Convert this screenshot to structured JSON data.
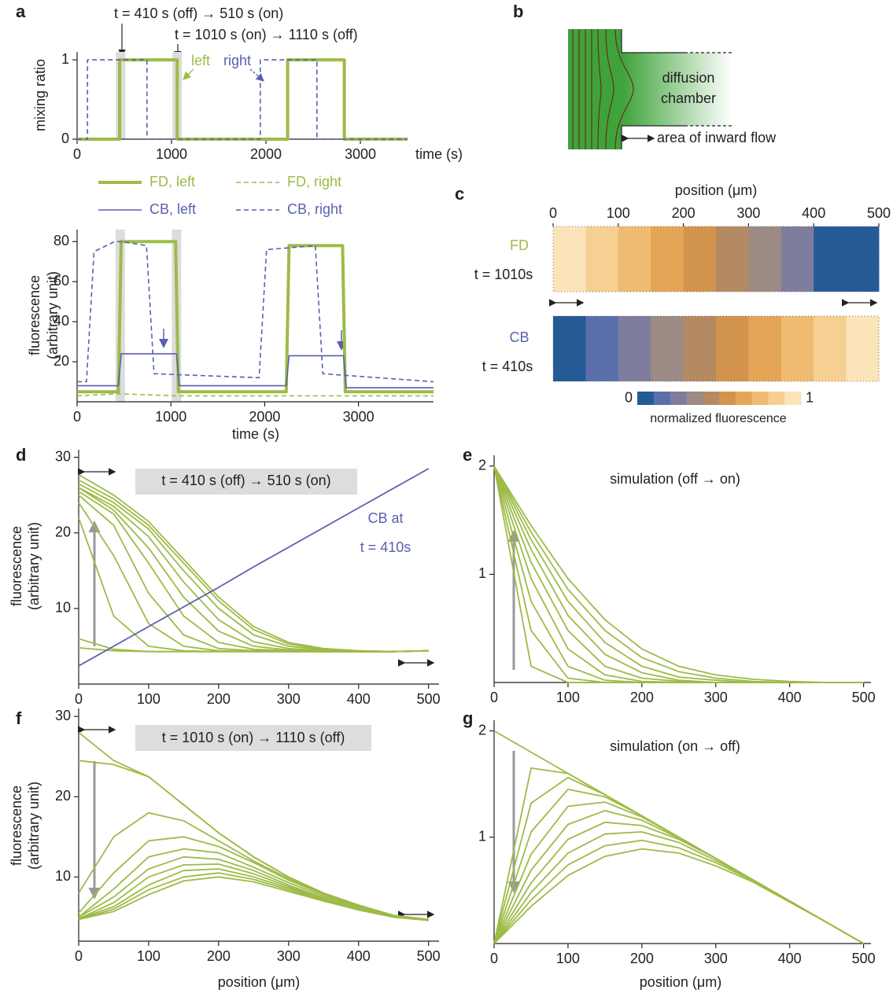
{
  "panel_labels": [
    "a",
    "b",
    "c",
    "d",
    "e",
    "f",
    "g"
  ],
  "diagram": {
    "chamber_label": [
      "diffusion",
      "chamber"
    ],
    "flow_label": "area of inward flow"
  },
  "chart_data": [
    {
      "type": "line",
      "ylabel": "mixing ratio",
      "xlabel": "time (s)",
      "xlim": [
        0,
        3500
      ],
      "ylim": [
        0,
        1.1
      ],
      "xticks": [
        0,
        1000,
        2000,
        3000
      ],
      "yticks": [
        0,
        1
      ],
      "spans": [
        [
          410,
          510
        ],
        [
          1010,
          1110
        ]
      ],
      "annotations": [
        "t = 410 s (off) → 510 s (on)",
        "t = 1010 s (on) → 1110 s (off)",
        "left",
        "right"
      ],
      "series": [
        {
          "name": "FD, left",
          "color": "#9dbb47",
          "style": "solid",
          "linewidth": 4,
          "x": [
            0,
            450,
            450,
            1060,
            1060,
            2230,
            2230,
            2830,
            2830,
            3500
          ],
          "values": [
            0,
            0,
            1,
            1,
            0,
            0,
            1,
            1,
            0,
            0
          ]
        },
        {
          "name": "CB, right",
          "color": "#5a5fb0",
          "style": "dashed",
          "linewidth": 1.6,
          "x": [
            0,
            110,
            110,
            740,
            740,
            1940,
            1940,
            2540,
            2540,
            3500
          ],
          "values": [
            0,
            0,
            1,
            1,
            0,
            0,
            1,
            1,
            0,
            0
          ]
        }
      ]
    },
    {
      "type": "line",
      "ylabel": [
        "fluorescence",
        "(arbitrary unit)"
      ],
      "xlabel": "time (s)",
      "xlim": [
        0,
        3800
      ],
      "ylim": [
        0,
        86
      ],
      "xticks": [
        0,
        1000,
        2000,
        3000
      ],
      "yticks": [
        20,
        40,
        60,
        80
      ],
      "legend": true,
      "spans": [
        [
          410,
          510
        ],
        [
          1010,
          1110
        ]
      ],
      "series": [
        {
          "name": "FD, left",
          "color": "#9dbb47",
          "style": "solid",
          "linewidth": 4,
          "x": [
            0,
            440,
            470,
            1050,
            1080,
            2230,
            2260,
            2830,
            2860,
            3800
          ],
          "values": [
            5,
            5,
            80,
            80,
            5,
            5,
            78,
            78,
            5,
            5
          ]
        },
        {
          "name": "FD, right",
          "color": "#9dbb47",
          "style": "dashed",
          "linewidth": 1.6,
          "x": [
            0,
            450,
            1060,
            3800
          ],
          "values": [
            3,
            4,
            3,
            3
          ]
        },
        {
          "name": "CB, left",
          "color": "#5a5fb0",
          "style": "solid",
          "linewidth": 1.6,
          "x": [
            0,
            440,
            470,
            1060,
            1090,
            2230,
            2260,
            2840,
            2870,
            3800
          ],
          "values": [
            8,
            8,
            24,
            24,
            8,
            8,
            23,
            23,
            7,
            7
          ]
        },
        {
          "name": "CB, right",
          "color": "#5a5fb0",
          "style": "dashed",
          "linewidth": 1.6,
          "x": [
            0,
            100,
            180,
            400,
            480,
            740,
            820,
            1940,
            2020,
            2540,
            2620,
            3800
          ],
          "values": [
            10,
            10,
            75,
            80,
            80,
            78,
            14,
            12,
            76,
            78,
            14,
            10
          ]
        }
      ]
    },
    {
      "type": "heatmap",
      "xlabel": "position (μm)",
      "xlim": [
        0,
        500
      ],
      "xticks": [
        0,
        100,
        200,
        300,
        400,
        500
      ],
      "bins": [
        0,
        50,
        100,
        150,
        200,
        250,
        300,
        350,
        400,
        450,
        500
      ],
      "zlim": [
        0,
        1
      ],
      "zticks": [
        0,
        1
      ],
      "colorbar_label": "normalized fluorescence",
      "colorscale": [
        "#245a96",
        "#5b6fab",
        "#7e7d9e",
        "#9c8a84",
        "#b48a62",
        "#d2944c",
        "#e4a656",
        "#efbb72",
        "#f6cf92",
        "#fbe4b9"
      ],
      "rows": [
        {
          "name": "FD",
          "label": "t = 1010s",
          "color": "#9dbb47",
          "values": [
            0.95,
            0.85,
            0.75,
            0.65,
            0.55,
            0.45,
            0.35,
            0.25,
            0.05,
            0.05
          ]
        },
        {
          "name": "CB",
          "label": "t = 410s",
          "color": "#5a5fb0",
          "values": [
            0.05,
            0.15,
            0.25,
            0.35,
            0.45,
            0.55,
            0.65,
            0.75,
            0.85,
            0.95
          ]
        }
      ]
    },
    {
      "type": "line",
      "ylabel": [
        "fluorescence",
        "(arbitrary unit)"
      ],
      "title": "t = 410 s (off) → 510 s (on)",
      "annotation": [
        "CB at",
        "t = 410s"
      ],
      "xlim": [
        0,
        515
      ],
      "ylim": [
        0,
        31
      ],
      "xticks": [
        0,
        100,
        200,
        300,
        400,
        500
      ],
      "yticks": [
        10,
        20,
        30
      ],
      "x": [
        0,
        50,
        100,
        150,
        200,
        250,
        300,
        350,
        400,
        450,
        500
      ],
      "series": [
        {
          "color": "#9dbb47",
          "values": [
            4.8,
            4.4,
            4.3,
            4.3,
            4.3,
            4.3,
            4.3,
            4.3,
            4.3,
            4.3,
            4.4
          ]
        },
        {
          "color": "#9dbb47",
          "values": [
            6,
            4.6,
            4.3,
            4.3,
            4.3,
            4.3,
            4.3,
            4.3,
            4.3,
            4.3,
            4.4
          ]
        },
        {
          "color": "#9dbb47",
          "values": [
            22,
            9,
            5,
            4.4,
            4.3,
            4.3,
            4.3,
            4.3,
            4.3,
            4.3,
            4.4
          ]
        },
        {
          "color": "#9dbb47",
          "values": [
            24,
            17,
            8,
            5,
            4.4,
            4.3,
            4.3,
            4.3,
            4.3,
            4.3,
            4.4
          ]
        },
        {
          "color": "#9dbb47",
          "values": [
            25,
            21,
            12,
            6.5,
            4.7,
            4.4,
            4.3,
            4.3,
            4.3,
            4.3,
            4.4
          ]
        },
        {
          "color": "#9dbb47",
          "values": [
            25.5,
            22.5,
            16,
            9,
            5.5,
            4.6,
            4.4,
            4.3,
            4.3,
            4.3,
            4.4
          ]
        },
        {
          "color": "#9dbb47",
          "values": [
            26,
            23,
            18,
            11.5,
            7,
            5,
            4.5,
            4.3,
            4.3,
            4.3,
            4.4
          ]
        },
        {
          "color": "#9dbb47",
          "values": [
            26,
            23.5,
            19.5,
            13.5,
            8.5,
            5.6,
            4.7,
            4.4,
            4.3,
            4.3,
            4.4
          ]
        },
        {
          "color": "#9dbb47",
          "values": [
            26.5,
            24,
            20.5,
            15,
            10,
            6.5,
            5,
            4.5,
            4.3,
            4.3,
            4.4
          ]
        },
        {
          "color": "#9dbb47",
          "values": [
            27,
            24.5,
            21,
            16,
            11,
            7.2,
            5.3,
            4.6,
            4.4,
            4.3,
            4.4
          ]
        },
        {
          "color": "#9dbb47",
          "values": [
            27.7,
            25,
            21.5,
            16.5,
            11.5,
            7.6,
            5.5,
            4.7,
            4.4,
            4.3,
            4.4
          ]
        },
        {
          "color": "#5a5fb0",
          "values": [
            2.4,
            5,
            7.6,
            10.2,
            12.8,
            15.5,
            18.1,
            20.7,
            23.3,
            25.9,
            28.5
          ]
        }
      ]
    },
    {
      "type": "line",
      "title": "simulation (off → on)",
      "xlim": [
        0,
        510
      ],
      "ylim": [
        0,
        2.1
      ],
      "xticks": [
        0,
        100,
        200,
        300,
        400,
        500
      ],
      "yticks": [
        1,
        2
      ],
      "x": [
        0,
        50,
        100,
        150,
        200,
        250,
        300,
        350,
        400,
        450,
        500
      ],
      "series": [
        {
          "color": "#9dbb47",
          "values": [
            2,
            0.15,
            0,
            0,
            0,
            0,
            0,
            0,
            0,
            0,
            0
          ]
        },
        {
          "color": "#9dbb47",
          "values": [
            2,
            0.48,
            0.04,
            0,
            0,
            0,
            0,
            0,
            0,
            0,
            0
          ]
        },
        {
          "color": "#9dbb47",
          "values": [
            2,
            0.75,
            0.15,
            0.02,
            0,
            0,
            0,
            0,
            0,
            0,
            0
          ]
        },
        {
          "color": "#9dbb47",
          "values": [
            2,
            0.96,
            0.31,
            0.07,
            0.01,
            0,
            0,
            0,
            0,
            0,
            0
          ]
        },
        {
          "color": "#9dbb47",
          "values": [
            2,
            1.11,
            0.48,
            0.15,
            0.04,
            0.01,
            0,
            0,
            0,
            0,
            0
          ]
        },
        {
          "color": "#9dbb47",
          "values": [
            2,
            1.23,
            0.62,
            0.26,
            0.09,
            0.02,
            0,
            0,
            0,
            0,
            0
          ]
        },
        {
          "color": "#9dbb47",
          "values": [
            2,
            1.32,
            0.75,
            0.37,
            0.15,
            0.05,
            0.02,
            0,
            0,
            0,
            0
          ]
        },
        {
          "color": "#9dbb47",
          "values": [
            2,
            1.39,
            0.86,
            0.48,
            0.23,
            0.1,
            0.04,
            0.01,
            0,
            0,
            0
          ]
        },
        {
          "color": "#9dbb47",
          "values": [
            2,
            1.45,
            0.96,
            0.58,
            0.31,
            0.15,
            0.07,
            0.03,
            0.01,
            0,
            0
          ]
        }
      ]
    },
    {
      "type": "line",
      "ylabel": [
        "fluorescence",
        "(arbitrary unit)"
      ],
      "xlabel": "position (μm)",
      "title": "t = 1010 s (on) → 1110 s (off)",
      "xlim": [
        0,
        515
      ],
      "ylim": [
        2,
        31
      ],
      "xticks": [
        0,
        100,
        200,
        300,
        400,
        500
      ],
      "yticks": [
        10,
        20,
        30
      ],
      "x": [
        0,
        50,
        100,
        150,
        200,
        250,
        300,
        350,
        400,
        450,
        500
      ],
      "series": [
        {
          "color": "#9dbb47",
          "values": [
            28,
            24.5,
            22.5,
            19,
            15.5,
            12.5,
            10,
            8,
            6.5,
            5.2,
            4.7
          ]
        },
        {
          "color": "#9dbb47",
          "values": [
            24.5,
            24,
            22.5,
            19,
            15.5,
            12.5,
            10,
            8,
            6.5,
            5.2,
            4.7
          ]
        },
        {
          "color": "#9dbb47",
          "values": [
            8,
            15,
            18,
            17,
            14.5,
            12,
            9.8,
            7.9,
            6.4,
            5.2,
            4.7
          ]
        },
        {
          "color": "#9dbb47",
          "values": [
            5.5,
            10.5,
            14.5,
            15,
            13.8,
            11.8,
            9.6,
            7.8,
            6.3,
            5.1,
            4.6
          ]
        },
        {
          "color": "#9dbb47",
          "values": [
            5,
            8.5,
            12.5,
            13.5,
            13,
            11.2,
            9.3,
            7.6,
            6.2,
            5.1,
            4.6
          ]
        },
        {
          "color": "#9dbb47",
          "values": [
            5,
            7.5,
            11,
            12.5,
            12.2,
            10.8,
            9,
            7.4,
            6.1,
            5,
            4.6
          ]
        },
        {
          "color": "#9dbb47",
          "values": [
            4.8,
            6.8,
            10,
            11.5,
            11.6,
            10.4,
            8.8,
            7.3,
            6,
            5,
            4.6
          ]
        },
        {
          "color": "#9dbb47",
          "values": [
            4.8,
            6.3,
            9,
            10.8,
            11,
            10,
            8.6,
            7.2,
            6,
            5,
            4.6
          ]
        },
        {
          "color": "#9dbb47",
          "values": [
            4.7,
            6,
            8.4,
            10,
            10.5,
            9.7,
            8.4,
            7.1,
            5.9,
            5,
            4.6
          ]
        },
        {
          "color": "#9dbb47",
          "values": [
            4.7,
            5.7,
            7.8,
            9.5,
            10,
            9.4,
            8.2,
            7,
            5.9,
            5,
            4.6
          ]
        }
      ]
    },
    {
      "type": "line",
      "xlabel": "position (μm)",
      "title": "simulation (on → off)",
      "xlim": [
        0,
        510
      ],
      "ylim": [
        0,
        2.1
      ],
      "xticks": [
        0,
        100,
        200,
        300,
        400,
        500
      ],
      "yticks": [
        1,
        2
      ],
      "x": [
        0,
        50,
        100,
        150,
        200,
        250,
        300,
        350,
        400,
        450,
        500
      ],
      "series": [
        {
          "color": "#9dbb47",
          "values": [
            2,
            1.8,
            1.6,
            1.4,
            1.2,
            1,
            0.8,
            0.6,
            0.4,
            0.2,
            0
          ]
        },
        {
          "color": "#9dbb47",
          "values": [
            0,
            1.65,
            1.6,
            1.4,
            1.2,
            1,
            0.8,
            0.6,
            0.4,
            0.2,
            0
          ]
        },
        {
          "color": "#9dbb47",
          "values": [
            0,
            1.32,
            1.56,
            1.4,
            1.2,
            1,
            0.8,
            0.6,
            0.4,
            0.2,
            0
          ]
        },
        {
          "color": "#9dbb47",
          "values": [
            0,
            1.05,
            1.45,
            1.38,
            1.2,
            1,
            0.8,
            0.6,
            0.4,
            0.2,
            0
          ]
        },
        {
          "color": "#9dbb47",
          "values": [
            0,
            0.84,
            1.29,
            1.33,
            1.19,
            1,
            0.8,
            0.6,
            0.4,
            0.2,
            0
          ]
        },
        {
          "color": "#9dbb47",
          "values": [
            0,
            0.69,
            1.12,
            1.25,
            1.16,
            0.99,
            0.8,
            0.6,
            0.4,
            0.2,
            0
          ]
        },
        {
          "color": "#9dbb47",
          "values": [
            0,
            0.57,
            0.98,
            1.14,
            1.11,
            0.98,
            0.8,
            0.6,
            0.4,
            0.2,
            0
          ]
        },
        {
          "color": "#9dbb47",
          "values": [
            0,
            0.48,
            0.85,
            1.03,
            1.05,
            0.95,
            0.78,
            0.6,
            0.4,
            0.2,
            0
          ]
        },
        {
          "color": "#9dbb47",
          "values": [
            0,
            0.41,
            0.74,
            0.92,
            0.97,
            0.9,
            0.76,
            0.59,
            0.4,
            0.2,
            0
          ]
        },
        {
          "color": "#9dbb47",
          "values": [
            0,
            0.35,
            0.64,
            0.82,
            0.89,
            0.85,
            0.73,
            0.58,
            0.39,
            0.2,
            0
          ]
        }
      ]
    }
  ]
}
